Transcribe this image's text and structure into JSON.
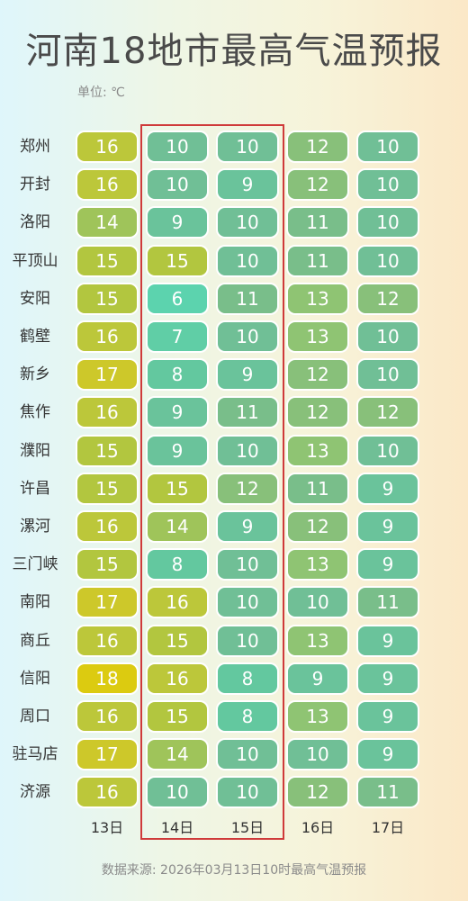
{
  "title": "河南18地市最高气温预报",
  "unit": "单位: ℃",
  "source": "数据来源: 2026年03月13日10时最高气温预报",
  "chart_data": {
    "type": "heatmap",
    "title": "河南18地市最高气温预报",
    "columns": [
      "13日",
      "14日",
      "15日",
      "16日",
      "17日"
    ],
    "rows": [
      "郑州",
      "开封",
      "洛阳",
      "平顶山",
      "安阳",
      "鹤壁",
      "新乡",
      "焦作",
      "濮阳",
      "许昌",
      "漯河",
      "三门峡",
      "南阳",
      "商丘",
      "信阳",
      "周口",
      "驻马店",
      "济源"
    ],
    "values": [
      [
        16,
        10,
        10,
        12,
        10
      ],
      [
        16,
        10,
        9,
        12,
        10
      ],
      [
        14,
        9,
        10,
        11,
        10
      ],
      [
        15,
        15,
        10,
        11,
        10
      ],
      [
        15,
        6,
        11,
        13,
        12
      ],
      [
        16,
        7,
        10,
        13,
        10
      ],
      [
        17,
        8,
        9,
        12,
        10
      ],
      [
        16,
        9,
        11,
        12,
        12
      ],
      [
        15,
        9,
        10,
        13,
        10
      ],
      [
        15,
        15,
        12,
        11,
        9
      ],
      [
        16,
        14,
        9,
        12,
        9
      ],
      [
        15,
        8,
        10,
        13,
        9
      ],
      [
        17,
        16,
        10,
        10,
        11
      ],
      [
        16,
        15,
        10,
        13,
        9
      ],
      [
        18,
        16,
        8,
        9,
        9
      ],
      [
        16,
        15,
        8,
        13,
        9
      ],
      [
        17,
        14,
        10,
        10,
        9
      ],
      [
        16,
        10,
        10,
        12,
        11
      ]
    ],
    "highlighted_columns": [
      "14日",
      "15日"
    ],
    "highlight_color": "#cf3a3a",
    "color_scale": {
      "6": "#5cd3ae",
      "7": "#60cea6",
      "8": "#63c89f",
      "9": "#6ac39b",
      "10": "#70bf96",
      "11": "#79be8a",
      "12": "#88c07a",
      "13": "#8fc473",
      "14": "#9fc45a",
      "15": "#b2c63f",
      "16": "#bcc73a",
      "17": "#cdc82a",
      "18": "#dccb10"
    }
  }
}
